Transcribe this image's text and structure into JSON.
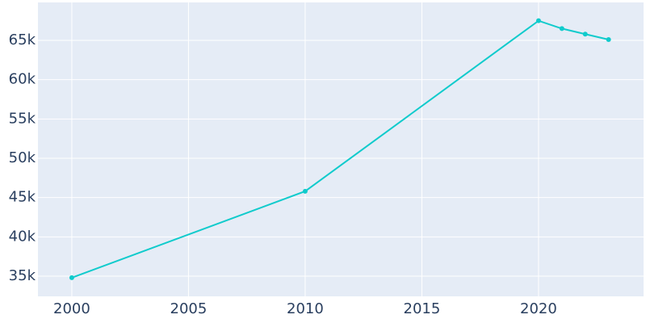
{
  "chart_data": {
    "type": "line",
    "x": [
      2000,
      2010,
      2020,
      2021,
      2022,
      2023
    ],
    "series": [
      {
        "color": "#10cbcc",
        "values": [
          34800,
          45800,
          67500,
          66500,
          65800,
          65100
        ]
      }
    ],
    "xlim": [
      1998.55,
      2024.5
    ],
    "xticks": [
      2000,
      2005,
      2010,
      2015,
      2020
    ],
    "ylim": [
      32430,
      69830
    ],
    "yticks": [
      {
        "value": 35000,
        "label": "35k"
      },
      {
        "value": 40000,
        "label": "40k"
      },
      {
        "value": 45000,
        "label": "45k"
      },
      {
        "value": 50000,
        "label": "50k"
      },
      {
        "value": 55000,
        "label": "55k"
      },
      {
        "value": 60000,
        "label": "60k"
      },
      {
        "value": 65000,
        "label": "65k"
      }
    ],
    "grid": true,
    "background": "#e5ecf6"
  }
}
